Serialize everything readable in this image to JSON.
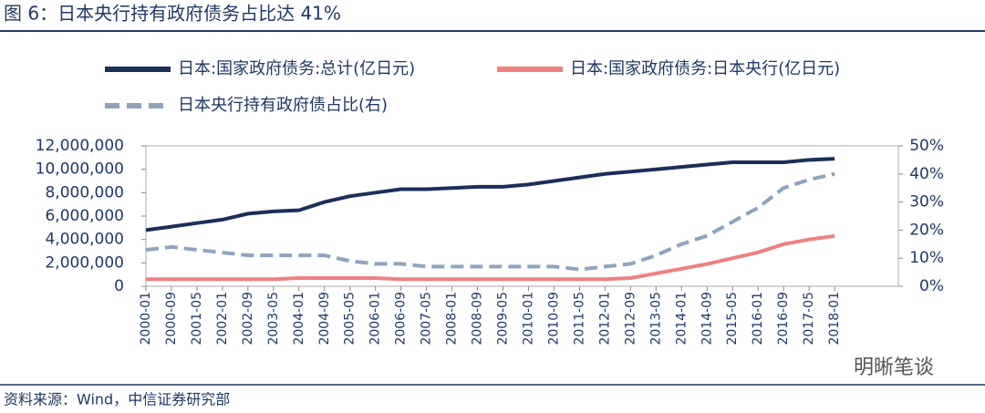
{
  "title": "图 6：日本央行持有政府债务占比达 41%",
  "source": "资料来源：Wind，中信证券研究部",
  "watermark": "明晰笔谈",
  "chart_data": {
    "type": "line",
    "x": [
      "2000-01",
      "2000-09",
      "2001-05",
      "2002-01",
      "2002-09",
      "2003-05",
      "2004-01",
      "2004-09",
      "2005-05",
      "2006-01",
      "2006-09",
      "2007-05",
      "2008-01",
      "2008-09",
      "2009-05",
      "2010-01",
      "2010-09",
      "2011-05",
      "2012-01",
      "2012-09",
      "2013-05",
      "2014-01",
      "2014-09",
      "2015-05",
      "2016-01",
      "2016-09",
      "2017-05",
      "2018-01"
    ],
    "series": [
      {
        "name": "日本:国家政府债务:总计(亿日元)",
        "color": "#1a2f5a",
        "style": "solid",
        "values": [
          4800000,
          5100000,
          5400000,
          5700000,
          6200000,
          6400000,
          6500000,
          7200000,
          7700000,
          8000000,
          8300000,
          8300000,
          8400000,
          8500000,
          8500000,
          8700000,
          9000000,
          9300000,
          9600000,
          9800000,
          10000000,
          10200000,
          10400000,
          10600000,
          10600000,
          10600000,
          10800000,
          10900000
        ]
      },
      {
        "name": "日本:国家政府债务:日本央行(亿日元)",
        "color": "#f08080",
        "style": "solid",
        "values": [
          600000,
          600000,
          600000,
          600000,
          600000,
          600000,
          700000,
          700000,
          700000,
          700000,
          600000,
          600000,
          600000,
          600000,
          600000,
          600000,
          600000,
          600000,
          600000,
          700000,
          1100000,
          1500000,
          1900000,
          2400000,
          2900000,
          3600000,
          4000000,
          4300000
        ]
      },
      {
        "name": "日本央行持有政府债占比(右)",
        "color": "#8fa3bd",
        "style": "dashed",
        "axis": "y2",
        "values": [
          13,
          14,
          13,
          12,
          11,
          11,
          11,
          11,
          9,
          8,
          8,
          7,
          7,
          7,
          7,
          7,
          7,
          6,
          7,
          8,
          11,
          15,
          18,
          23,
          28,
          35,
          38,
          40
        ]
      }
    ],
    "ylim": [
      0,
      12000000
    ],
    "yticks": [
      0,
      {
        "value": 2000000,
        "label": "2,000,000"
      },
      {
        "value": 4000000,
        "label": "4,000,000"
      },
      {
        "value": 6000000,
        "label": "6,000,000"
      },
      {
        "value": 8000000,
        "label": "8,000,000"
      },
      {
        "value": 10000000,
        "label": "10,000,000"
      },
      {
        "value": 12000000,
        "label": "12,000,000"
      }
    ],
    "y2lim": [
      0,
      50
    ],
    "y2ticks": [
      {
        "value": 0,
        "label": "0%"
      },
      {
        "value": 10,
        "label": "10%"
      },
      {
        "value": 20,
        "label": "20%"
      },
      {
        "value": 30,
        "label": "30%"
      },
      {
        "value": 40,
        "label": "40%"
      },
      {
        "value": 50,
        "label": "50%"
      }
    ]
  }
}
